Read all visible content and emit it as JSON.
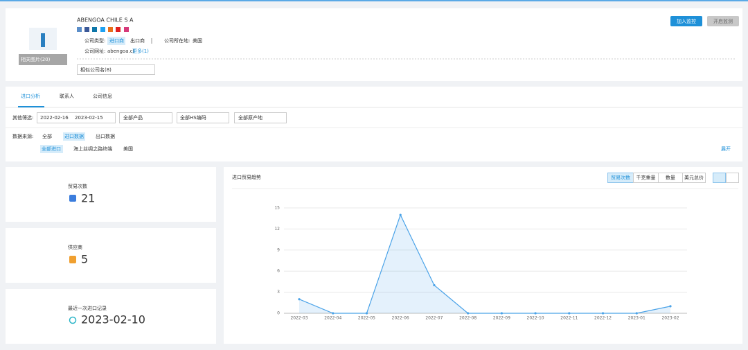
{
  "company": {
    "photo_label": "相关图片(20)",
    "name": "ABENGOA CHILE S A",
    "type_label": "公司类型:",
    "types": [
      "进口商",
      "出口商"
    ],
    "location_label": "公司所在地:",
    "location": "美国",
    "website_label": "公司网址:",
    "website": "abengoa.cl",
    "more": "更多(1)",
    "similar": "相似公司名(8)",
    "buttons": [
      "加入监控",
      "开启监测"
    ]
  },
  "tabs": [
    "进口分析",
    "联系人",
    "公司信息"
  ],
  "filters": {
    "label": "其他筛选:",
    "date_from": "2022-02-16",
    "date_to": "2023-02-15",
    "product": "全部产品",
    "hs": "全部HS编码",
    "origin": "全部原产地",
    "source_label": "数据来源:",
    "sources": [
      "全部",
      "进口数据",
      "出口数据"
    ],
    "sub_sources": [
      "全部进口",
      "海上丝绸之路终端",
      "美国"
    ],
    "expand": "展开"
  },
  "stats": [
    {
      "label": "贸易次数",
      "value": 21
    },
    {
      "label": "供应商",
      "value": 5
    },
    {
      "label": "最近一次进口记录",
      "value": "2023-02-10"
    }
  ],
  "chart_data": {
    "type": "area",
    "title": "进口贸易趋势",
    "metrics": [
      "贸易次数",
      "千克重量",
      "数量",
      "美元总价"
    ],
    "categories": [
      "2022-03",
      "2022-04",
      "2022-05",
      "2022-06",
      "2022-07",
      "2022-08",
      "2022-09",
      "2022-10",
      "2022-11",
      "2022-12",
      "2023-01",
      "2023-02"
    ],
    "values": [
      2,
      0,
      0,
      14,
      4,
      0,
      0,
      0,
      0,
      0,
      0,
      1
    ],
    "color": "#4ba3e8",
    "ylim": [
      0,
      15
    ],
    "yticks": [
      0,
      3,
      6,
      9,
      12,
      15
    ],
    "grid": true
  }
}
